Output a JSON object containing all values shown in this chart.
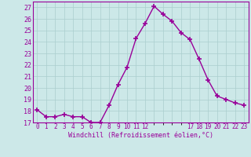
{
  "x": [
    0,
    1,
    2,
    3,
    4,
    5,
    6,
    7,
    8,
    9,
    10,
    11,
    12,
    13,
    14,
    15,
    16,
    17,
    18,
    19,
    20,
    21,
    22,
    23
  ],
  "y": [
    18.1,
    17.5,
    17.5,
    17.7,
    17.5,
    17.5,
    17.0,
    17.0,
    18.5,
    20.3,
    21.8,
    24.3,
    25.6,
    27.1,
    26.4,
    25.8,
    24.8,
    24.2,
    22.5,
    20.7,
    19.3,
    19.0,
    18.7,
    18.5
  ],
  "line_color": "#990099",
  "marker": "+",
  "marker_color": "#990099",
  "bg_color": "#cce8e8",
  "grid_color": "#aacece",
  "xlabel": "Windchill (Refroidissement éolien,°C)",
  "ylim": [
    17,
    27.5
  ],
  "xlim": [
    -0.5,
    23.5
  ],
  "yticks": [
    17,
    18,
    19,
    20,
    21,
    22,
    23,
    24,
    25,
    26,
    27
  ],
  "xtick_positions": [
    0,
    1,
    2,
    3,
    4,
    5,
    6,
    7,
    8,
    9,
    10,
    11,
    12,
    17,
    18,
    19,
    20,
    21,
    22,
    23
  ],
  "xtick_labels": [
    "0",
    "1",
    "2",
    "3",
    "4",
    "5",
    "6",
    "7",
    "8",
    "9",
    "10",
    "11",
    "12",
    "17",
    "18",
    "19",
    "20",
    "21",
    "22",
    "23"
  ],
  "xlabel_color": "#990099",
  "tick_color": "#990099",
  "spine_color": "#990099",
  "linewidth": 1.0,
  "markersize": 4,
  "font_family": "monospace"
}
